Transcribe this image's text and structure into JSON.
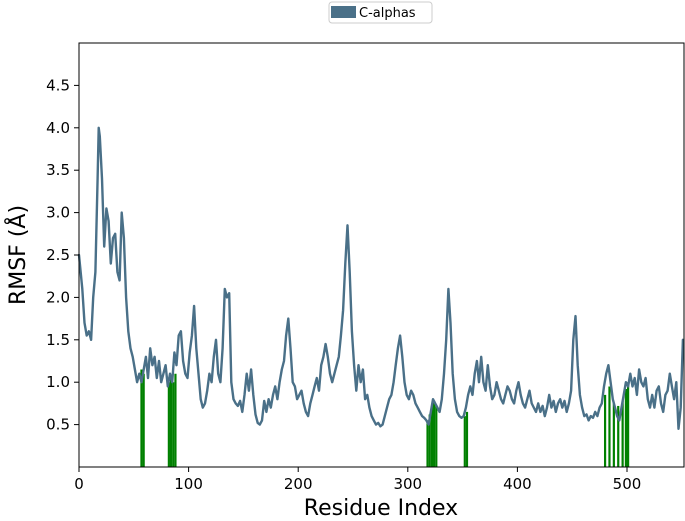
{
  "chart_data": {
    "type": "line",
    "xlabel": "Residue Index",
    "ylabel": "RMSF (Å)",
    "xlim": [
      0,
      552
    ],
    "ylim": [
      0,
      5.0
    ],
    "xticks": [
      0,
      100,
      200,
      300,
      400,
      500
    ],
    "yticks": [
      0.5,
      1.0,
      1.5,
      2.0,
      2.5,
      3.0,
      3.5,
      4.0,
      4.5
    ],
    "grid": false,
    "legend": {
      "placement": "top-center-outside",
      "entries": [
        "C-alphas"
      ]
    },
    "series": [
      {
        "name": "C-alphas",
        "color": "#4a7088",
        "points": [
          [
            0,
            2.5
          ],
          [
            3,
            2.1
          ],
          [
            5,
            1.7
          ],
          [
            7,
            1.55
          ],
          [
            9,
            1.6
          ],
          [
            11,
            1.5
          ],
          [
            13,
            2.0
          ],
          [
            15,
            2.3
          ],
          [
            17,
            3.4
          ],
          [
            18,
            4.0
          ],
          [
            19,
            3.9
          ],
          [
            21,
            3.4
          ],
          [
            23,
            2.6
          ],
          [
            25,
            3.05
          ],
          [
            27,
            2.9
          ],
          [
            29,
            2.4
          ],
          [
            31,
            2.7
          ],
          [
            33,
            2.75
          ],
          [
            35,
            2.3
          ],
          [
            37,
            2.2
          ],
          [
            39,
            3.0
          ],
          [
            41,
            2.7
          ],
          [
            43,
            2.0
          ],
          [
            45,
            1.6
          ],
          [
            47,
            1.4
          ],
          [
            49,
            1.3
          ],
          [
            51,
            1.15
          ],
          [
            53,
            1.0
          ],
          [
            55,
            1.1
          ],
          [
            57,
            1.0
          ],
          [
            59,
            1.15
          ],
          [
            61,
            1.3
          ],
          [
            63,
            1.05
          ],
          [
            65,
            1.4
          ],
          [
            67,
            1.2
          ],
          [
            69,
            1.3
          ],
          [
            71,
            1.05
          ],
          [
            73,
            1.25
          ],
          [
            75,
            1.0
          ],
          [
            77,
            1.1
          ],
          [
            79,
            1.2
          ],
          [
            81,
            0.95
          ],
          [
            83,
            1.1
          ],
          [
            85,
            1.0
          ],
          [
            87,
            1.35
          ],
          [
            89,
            1.2
          ],
          [
            91,
            1.55
          ],
          [
            93,
            1.6
          ],
          [
            95,
            1.25
          ],
          [
            97,
            1.1
          ],
          [
            99,
            1.05
          ],
          [
            101,
            1.35
          ],
          [
            103,
            1.55
          ],
          [
            105,
            1.9
          ],
          [
            107,
            1.4
          ],
          [
            109,
            1.1
          ],
          [
            111,
            0.8
          ],
          [
            113,
            0.7
          ],
          [
            115,
            0.75
          ],
          [
            117,
            0.9
          ],
          [
            119,
            1.1
          ],
          [
            121,
            1.0
          ],
          [
            123,
            1.3
          ],
          [
            125,
            1.5
          ],
          [
            127,
            1.1
          ],
          [
            129,
            1.0
          ],
          [
            131,
            1.4
          ],
          [
            133,
            2.1
          ],
          [
            135,
            2.0
          ],
          [
            137,
            2.05
          ],
          [
            139,
            1.0
          ],
          [
            141,
            0.8
          ],
          [
            143,
            0.75
          ],
          [
            145,
            0.72
          ],
          [
            147,
            0.78
          ],
          [
            149,
            0.65
          ],
          [
            151,
            0.85
          ],
          [
            153,
            1.1
          ],
          [
            155,
            0.9
          ],
          [
            157,
            1.15
          ],
          [
            159,
            0.85
          ],
          [
            161,
            0.62
          ],
          [
            163,
            0.52
          ],
          [
            165,
            0.5
          ],
          [
            167,
            0.55
          ],
          [
            169,
            0.78
          ],
          [
            171,
            0.65
          ],
          [
            173,
            0.8
          ],
          [
            175,
            0.7
          ],
          [
            177,
            0.85
          ],
          [
            179,
            0.95
          ],
          [
            181,
            0.8
          ],
          [
            183,
            1.0
          ],
          [
            185,
            1.15
          ],
          [
            187,
            1.25
          ],
          [
            189,
            1.55
          ],
          [
            191,
            1.75
          ],
          [
            193,
            1.4
          ],
          [
            195,
            1.0
          ],
          [
            197,
            0.95
          ],
          [
            199,
            0.8
          ],
          [
            201,
            0.85
          ],
          [
            203,
            0.9
          ],
          [
            205,
            0.75
          ],
          [
            207,
            0.65
          ],
          [
            209,
            0.6
          ],
          [
            211,
            0.75
          ],
          [
            213,
            0.85
          ],
          [
            215,
            0.95
          ],
          [
            217,
            1.05
          ],
          [
            219,
            0.9
          ],
          [
            221,
            1.2
          ],
          [
            223,
            1.3
          ],
          [
            225,
            1.45
          ],
          [
            227,
            1.3
          ],
          [
            229,
            1.1
          ],
          [
            231,
            1.0
          ],
          [
            233,
            1.1
          ],
          [
            235,
            1.2
          ],
          [
            237,
            1.3
          ],
          [
            239,
            1.55
          ],
          [
            241,
            1.85
          ],
          [
            243,
            2.4
          ],
          [
            245,
            2.85
          ],
          [
            247,
            2.3
          ],
          [
            249,
            1.6
          ],
          [
            251,
            1.2
          ],
          [
            253,
            0.9
          ],
          [
            255,
            1.2
          ],
          [
            257,
            1.0
          ],
          [
            259,
            1.15
          ],
          [
            261,
            0.8
          ],
          [
            263,
            0.85
          ],
          [
            265,
            0.7
          ],
          [
            267,
            0.6
          ],
          [
            269,
            0.55
          ],
          [
            271,
            0.5
          ],
          [
            273,
            0.52
          ],
          [
            275,
            0.48
          ],
          [
            277,
            0.5
          ],
          [
            279,
            0.6
          ],
          [
            281,
            0.7
          ],
          [
            283,
            0.8
          ],
          [
            285,
            0.85
          ],
          [
            287,
            1.0
          ],
          [
            289,
            1.2
          ],
          [
            291,
            1.4
          ],
          [
            293,
            1.55
          ],
          [
            295,
            1.3
          ],
          [
            297,
            1.0
          ],
          [
            299,
            0.85
          ],
          [
            301,
            0.8
          ],
          [
            303,
            0.9
          ],
          [
            305,
            0.85
          ],
          [
            307,
            0.75
          ],
          [
            309,
            0.7
          ],
          [
            311,
            0.65
          ],
          [
            313,
            0.6
          ],
          [
            315,
            0.58
          ],
          [
            317,
            0.55
          ],
          [
            319,
            0.5
          ],
          [
            321,
            0.65
          ],
          [
            323,
            0.8
          ],
          [
            325,
            0.75
          ],
          [
            327,
            0.7
          ],
          [
            329,
            0.65
          ],
          [
            331,
            0.8
          ],
          [
            333,
            1.1
          ],
          [
            335,
            1.5
          ],
          [
            337,
            2.1
          ],
          [
            339,
            1.7
          ],
          [
            341,
            1.1
          ],
          [
            343,
            0.8
          ],
          [
            345,
            0.65
          ],
          [
            347,
            0.6
          ],
          [
            349,
            0.58
          ],
          [
            351,
            0.6
          ],
          [
            353,
            0.7
          ],
          [
            355,
            0.85
          ],
          [
            357,
            0.95
          ],
          [
            359,
            0.85
          ],
          [
            361,
            1.1
          ],
          [
            363,
            1.25
          ],
          [
            365,
            1.0
          ],
          [
            367,
            1.3
          ],
          [
            369,
            1.0
          ],
          [
            371,
            0.9
          ],
          [
            373,
            1.2
          ],
          [
            375,
            0.95
          ],
          [
            377,
            0.8
          ],
          [
            379,
            0.85
          ],
          [
            381,
            1.0
          ],
          [
            383,
            0.9
          ],
          [
            385,
            0.8
          ],
          [
            387,
            0.75
          ],
          [
            389,
            0.85
          ],
          [
            391,
            0.95
          ],
          [
            393,
            0.9
          ],
          [
            395,
            0.8
          ],
          [
            397,
            0.75
          ],
          [
            399,
            0.9
          ],
          [
            401,
            1.0
          ],
          [
            403,
            0.85
          ],
          [
            405,
            0.75
          ],
          [
            407,
            0.7
          ],
          [
            409,
            0.8
          ],
          [
            411,
            0.9
          ],
          [
            413,
            0.75
          ],
          [
            415,
            0.7
          ],
          [
            417,
            0.65
          ],
          [
            419,
            0.75
          ],
          [
            421,
            0.65
          ],
          [
            423,
            0.72
          ],
          [
            425,
            0.6
          ],
          [
            427,
            0.7
          ],
          [
            429,
            0.85
          ],
          [
            431,
            0.7
          ],
          [
            433,
            0.78
          ],
          [
            435,
            0.65
          ],
          [
            437,
            0.75
          ],
          [
            439,
            0.8
          ],
          [
            441,
            0.7
          ],
          [
            443,
            0.78
          ],
          [
            445,
            0.65
          ],
          [
            447,
            0.75
          ],
          [
            449,
            0.9
          ],
          [
            451,
            1.5
          ],
          [
            453,
            1.78
          ],
          [
            455,
            1.2
          ],
          [
            457,
            0.85
          ],
          [
            459,
            0.7
          ],
          [
            461,
            0.6
          ],
          [
            463,
            0.62
          ],
          [
            465,
            0.55
          ],
          [
            467,
            0.6
          ],
          [
            469,
            0.58
          ],
          [
            471,
            0.65
          ],
          [
            473,
            0.6
          ],
          [
            475,
            0.7
          ],
          [
            477,
            0.75
          ],
          [
            479,
            0.95
          ],
          [
            481,
            1.1
          ],
          [
            483,
            1.2
          ],
          [
            485,
            1.0
          ],
          [
            487,
            0.8
          ],
          [
            489,
            0.7
          ],
          [
            491,
            0.6
          ],
          [
            493,
            0.55
          ],
          [
            495,
            0.7
          ],
          [
            497,
            0.85
          ],
          [
            499,
            1.0
          ],
          [
            501,
            0.95
          ],
          [
            503,
            1.1
          ],
          [
            505,
            0.95
          ],
          [
            507,
            1.05
          ],
          [
            509,
            0.85
          ],
          [
            511,
            1.15
          ],
          [
            513,
            1.0
          ],
          [
            515,
            0.95
          ],
          [
            517,
            1.05
          ],
          [
            519,
            0.8
          ],
          [
            521,
            0.7
          ],
          [
            523,
            0.85
          ],
          [
            525,
            0.7
          ],
          [
            527,
            0.9
          ],
          [
            529,
            0.95
          ],
          [
            531,
            0.75
          ],
          [
            533,
            0.65
          ],
          [
            535,
            0.85
          ],
          [
            537,
            0.9
          ],
          [
            539,
            1.1
          ],
          [
            541,
            0.95
          ],
          [
            543,
            0.8
          ],
          [
            545,
            1.0
          ],
          [
            547,
            0.45
          ],
          [
            549,
            0.7
          ],
          [
            551,
            1.5
          ]
        ]
      }
    ],
    "highlight_bars": {
      "color": "#008000",
      "bars": [
        [
          57,
          1.15
        ],
        [
          59,
          1.1
        ],
        [
          82,
          1.0
        ],
        [
          84,
          1.05
        ],
        [
          86,
          1.0
        ],
        [
          88,
          1.1
        ],
        [
          318,
          0.55
        ],
        [
          320,
          0.62
        ],
        [
          322,
          0.72
        ],
        [
          324,
          0.78
        ],
        [
          326,
          0.72
        ],
        [
          352,
          0.6
        ],
        [
          354,
          0.65
        ],
        [
          480,
          0.85
        ],
        [
          484,
          0.95
        ],
        [
          488,
          0.75
        ],
        [
          492,
          0.72
        ],
        [
          496,
          0.78
        ],
        [
          499,
          0.92
        ],
        [
          501,
          1.0
        ]
      ]
    }
  }
}
